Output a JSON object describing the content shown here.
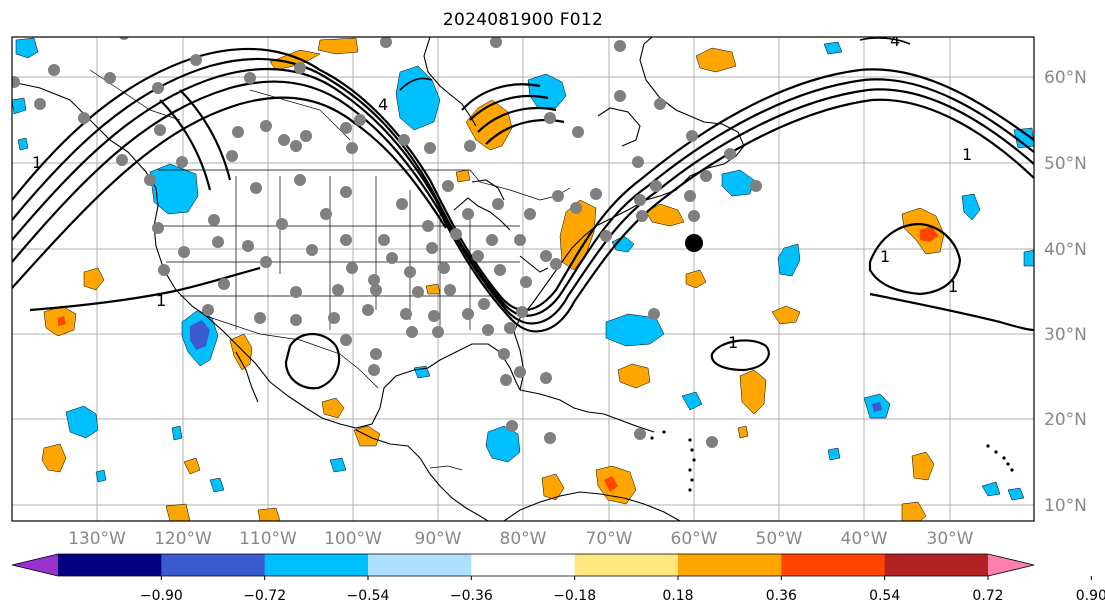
{
  "title": "2024081900 F012",
  "lon_labels": [
    "130°W",
    "120°W",
    "110°W",
    "100°W",
    "90°W",
    "80°W",
    "70°W",
    "60°W",
    "50°W",
    "40°W",
    "30°W"
  ],
  "lat_labels": [
    "60°N",
    "50°N",
    "40°N",
    "30°N",
    "20°N",
    "10°N"
  ],
  "colorbar": {
    "ticks": [
      "−0.90",
      "−0.72",
      "−0.54",
      "−0.36",
      "−0.18",
      "0.18",
      "0.36",
      "0.54",
      "0.72",
      "0.90"
    ],
    "colors": [
      "#9932cc",
      "#000080",
      "#3a5bd0",
      "#00bfff",
      "#b0e0ff",
      "#ffffff",
      "#ffe680",
      "#ffa500",
      "#ff4500",
      "#b22222",
      "#ff80b0"
    ]
  },
  "contour_labels": [
    "1",
    "1",
    "1",
    "1",
    "1",
    "1",
    "4",
    "4"
  ],
  "colors": {
    "positive": "#ffa500",
    "positive_strong": "#ff4500",
    "negative": "#00bfff",
    "negative_strong": "#3a5bd0",
    "stations": "#808080",
    "highlight_point": "#000000"
  }
}
